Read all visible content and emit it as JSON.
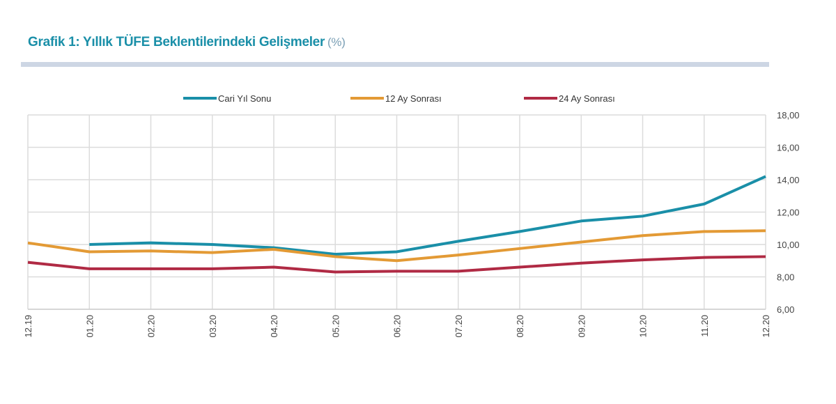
{
  "title": "Grafik 1: Yıllık TÜFE Beklentilerindeki Gelişmeler",
  "title_unit": "(%)",
  "chart_data": {
    "type": "line",
    "title": "Grafik 1: Yıllık TÜFE Beklentilerindeki Gelişmeler (%)",
    "categories": [
      "12.19",
      "01.20",
      "02.20",
      "03.20",
      "04.20",
      "05.20",
      "06.20",
      "07.20",
      "08.20",
      "09.20",
      "10.20",
      "11.20",
      "12.20"
    ],
    "ylim": [
      6,
      18
    ],
    "yticks": [
      "6,00",
      "8,00",
      "10,00",
      "12,00",
      "14,00",
      "16,00",
      "18,00"
    ],
    "y_axis_side": "right",
    "grid": true,
    "legend_position": "top",
    "series": [
      {
        "name": "Cari Yıl Sonu",
        "color": "#1a8fa8",
        "values": [
          null,
          10.0,
          10.1,
          10.0,
          9.8,
          9.4,
          9.55,
          10.2,
          10.8,
          11.45,
          11.75,
          12.5,
          14.2
        ]
      },
      {
        "name": "12 Ay Sonrası",
        "color": "#e39a35",
        "values": [
          10.1,
          9.55,
          9.6,
          9.5,
          9.7,
          9.25,
          9.0,
          9.35,
          9.75,
          10.15,
          10.55,
          10.8,
          10.85
        ]
      },
      {
        "name": "24 Ay Sonrası",
        "color": "#b02a44",
        "values": [
          8.9,
          8.5,
          8.5,
          8.5,
          8.6,
          8.3,
          8.35,
          8.35,
          8.6,
          8.85,
          9.05,
          9.2,
          9.25
        ]
      }
    ]
  }
}
